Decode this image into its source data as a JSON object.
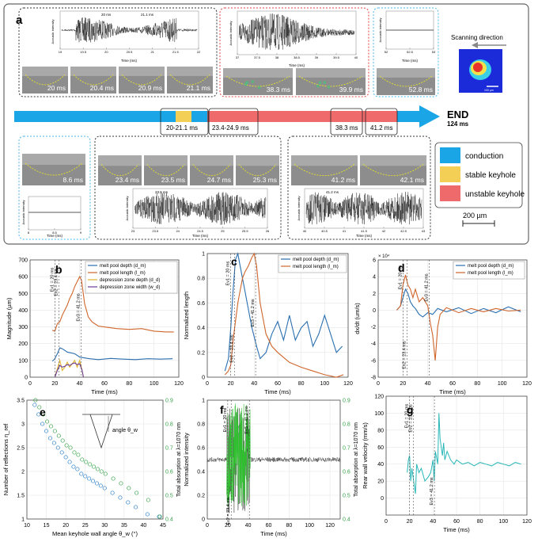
{
  "panel_a": {
    "letter": "a",
    "scan_label": "Scanning direction",
    "scale_bar_small": "100 µm",
    "scale_bar": "200 µm",
    "end_label": "END",
    "end_time": "124 ms",
    "timeline_labels": [
      "20-21.1 ms",
      "23.4-24.9 ms",
      "38.3 ms",
      "41.2 ms"
    ],
    "legend": [
      {
        "label": "conduction",
        "color": "#1aa6e6"
      },
      {
        "label": "stable keyhole",
        "color": "#f3cf55"
      },
      {
        "label": "unstable keyhole",
        "color": "#ef6b6b"
      }
    ],
    "frames_top_left": [
      "20 ms",
      "20.4 ms",
      "20.9 ms",
      "21.1 ms"
    ],
    "frames_top_mid": [
      "38.3 ms",
      "39.9 ms"
    ],
    "frames_top_right": [
      "52.8 ms"
    ],
    "frames_bottom_left": [
      "8.6 ms"
    ],
    "frames_bottom_mid": [
      "23.4 ms",
      "23.5 ms",
      "24.7 ms",
      "25.3 ms"
    ],
    "frames_bottom_right": [
      "41.2 ms",
      "42.1 ms"
    ],
    "acoustic_axis_label": "Acoustic intensity",
    "time_axis_label": "Time (ms)",
    "ac1": {
      "ticks": [
        "19",
        "19.5",
        "20",
        "20.5",
        "21",
        "21.5",
        "22"
      ],
      "marks": [
        "20 ms",
        "21.1 ms"
      ]
    },
    "ac2": {
      "ticks": [
        "37",
        "37.5",
        "38",
        "38.5",
        "39",
        "39.5",
        "40"
      ]
    },
    "ac3": {
      "ticks": [
        "52",
        "52.5",
        "53"
      ]
    },
    "ac4": {
      "ticks": [
        "8",
        "8.5",
        "9"
      ]
    },
    "ac5": {
      "ticks": [
        "23",
        "23.5",
        "24",
        "24.5",
        "25",
        "25.5",
        "26"
      ],
      "marks": [
        "23.5 ms"
      ]
    },
    "ac6": {
      "ticks": [
        "40",
        "40.5",
        "41",
        "41.5",
        "42",
        "42.5",
        "43"
      ],
      "marks": [
        "41.2 ms"
      ]
    }
  },
  "chart_data": [
    {
      "panel": "b",
      "type": "line",
      "xlabel": "Time (ms)",
      "ylabel": "Magnitude (µm)",
      "xlim": [
        0,
        120
      ],
      "ylim": [
        0,
        700
      ],
      "xticks": [
        "0",
        "20",
        "40",
        "60",
        "80",
        "100",
        "120"
      ],
      "yticks": [
        "0",
        "100",
        "200",
        "300",
        "400",
        "500",
        "600",
        "700"
      ],
      "events": [
        "Ev1 = 20 ms",
        "Ev2 = 23.4 ms",
        "Ev3 = 41.2 ms"
      ],
      "series": [
        {
          "name": "melt pool depth (d_m)",
          "color": "#2a6fb0",
          "x": [
            18,
            20,
            22,
            24,
            26,
            28,
            30,
            33,
            36,
            40,
            44,
            48,
            55,
            65,
            75,
            85,
            95,
            105,
            115
          ],
          "y": [
            95,
            110,
            140,
            175,
            170,
            160,
            150,
            145,
            140,
            120,
            115,
            110,
            105,
            112,
            108,
            105,
            110,
            108,
            110
          ]
        },
        {
          "name": "melt pool length (l_m)",
          "color": "#d0652b",
          "x": [
            18,
            20,
            22,
            24,
            26,
            28,
            30,
            32,
            34,
            36,
            38,
            40,
            41.5,
            44,
            47,
            50,
            55,
            60,
            70,
            80,
            90,
            100,
            110,
            116
          ],
          "y": [
            280,
            275,
            320,
            330,
            370,
            400,
            430,
            470,
            500,
            540,
            570,
            600,
            580,
            440,
            360,
            330,
            305,
            300,
            290,
            285,
            290,
            275,
            270,
            270
          ]
        },
        {
          "name": "depression zone depth (d_d)",
          "color": "#e0b32b",
          "x": [
            20,
            22,
            24,
            26,
            28,
            30,
            32,
            34,
            36,
            38,
            40,
            42,
            43
          ],
          "y": [
            0,
            50,
            100,
            40,
            60,
            90,
            60,
            80,
            100,
            60,
            100,
            40,
            0
          ]
        },
        {
          "name": "depression zone width (w_d)",
          "color": "#6a3c9a",
          "x": [
            20,
            22,
            24,
            26,
            28,
            30,
            32,
            34,
            36,
            38,
            40,
            42,
            43
          ],
          "y": [
            0,
            40,
            70,
            60,
            65,
            75,
            70,
            80,
            85,
            75,
            80,
            40,
            0
          ]
        }
      ]
    },
    {
      "panel": "c",
      "type": "line",
      "xlabel": "Time (ms)",
      "ylabel": "Normalized length",
      "xlim": [
        0,
        120
      ],
      "ylim": [
        0,
        1
      ],
      "xticks": [
        "0",
        "20",
        "40",
        "60",
        "80",
        "100",
        "120"
      ],
      "yticks": [
        "0",
        "0.2",
        "0.4",
        "0.6",
        "0.8",
        "1"
      ],
      "events": [
        "Ev1 = 20 ms",
        "Ev2 = 23.4 ms",
        "Ev3 = 41.2 ms"
      ],
      "series": [
        {
          "name": "melt pool depth (d_m)",
          "color": "#2a6fb0",
          "x": [
            15,
            18,
            20,
            22,
            24,
            26,
            28,
            30,
            32,
            35,
            38,
            42,
            45,
            50,
            55,
            60,
            65,
            70,
            75,
            80,
            85,
            90,
            95,
            100,
            105,
            110,
            115
          ],
          "y": [
            0.05,
            0.15,
            0.4,
            0.7,
            0.95,
            1.0,
            0.9,
            0.8,
            0.7,
            0.55,
            0.4,
            0.25,
            0.15,
            0.2,
            0.35,
            0.45,
            0.3,
            0.5,
            0.3,
            0.4,
            0.45,
            0.25,
            0.35,
            0.5,
            0.35,
            0.2,
            0.25
          ]
        },
        {
          "name": "melt pool length (l_m)",
          "color": "#d0652b",
          "x": [
            15,
            18,
            20,
            22,
            24,
            26,
            28,
            30,
            32,
            35,
            38,
            40,
            42,
            45,
            48,
            50,
            55,
            60,
            70,
            80,
            90,
            100,
            110,
            116
          ],
          "y": [
            0.02,
            0.05,
            0.1,
            0.3,
            0.45,
            0.6,
            0.7,
            0.8,
            0.85,
            0.9,
            0.97,
            1.0,
            0.9,
            0.6,
            0.45,
            0.35,
            0.25,
            0.2,
            0.12,
            0.08,
            0.05,
            0.02,
            0.0,
            0.02
          ]
        }
      ]
    },
    {
      "panel": "d",
      "type": "line",
      "xlabel": "Time (ms)",
      "ylabel": "dx/dt (um/s)",
      "axis_multiplier": "× 10⁴",
      "xlim": [
        0,
        120
      ],
      "ylim": [
        -8,
        6
      ],
      "xticks": [
        "0",
        "20",
        "40",
        "60",
        "80",
        "100",
        "120"
      ],
      "yticks": [
        "-8",
        "-6",
        "-4",
        "-2",
        "0",
        "2",
        "4",
        "6"
      ],
      "events": [
        "Ev1 = 20 ms",
        "Ev2 = 23.4 ms",
        "Ev3 = 41.2 ms"
      ],
      "series": [
        {
          "name": "melt pool depth (d_m)",
          "color": "#2a6fb0",
          "x": [
            15,
            18,
            20,
            22,
            24,
            26,
            28,
            30,
            33,
            36,
            40,
            44,
            48,
            55,
            65,
            75,
            85,
            95,
            105,
            115
          ],
          "y": [
            0,
            0.5,
            1.5,
            2.5,
            2.0,
            1.0,
            0.5,
            0.2,
            -0.5,
            -0.8,
            -0.3,
            -0.5,
            0.2,
            -0.2,
            0.3,
            -0.4,
            0.2,
            -0.3,
            0.4,
            -0.2
          ]
        },
        {
          "name": "melt pool length (l_m)",
          "color": "#d0652b",
          "x": [
            15,
            18,
            20,
            22,
            24,
            26,
            28,
            30,
            33,
            36,
            40,
            42,
            44,
            46,
            48,
            50,
            55,
            65,
            75,
            85,
            95,
            105,
            115
          ],
          "y": [
            0,
            0.5,
            3.0,
            4.2,
            3.0,
            2.5,
            1.5,
            2.5,
            1.0,
            1.5,
            0.5,
            -1.5,
            -3.0,
            -6.0,
            -2.0,
            -0.5,
            0.3,
            -0.3,
            0.2,
            -0.2,
            0.2,
            -0.1,
            0.0
          ]
        }
      ]
    },
    {
      "panel": "e",
      "type": "scatter",
      "xlabel": "Mean keyhole wall angle θ_w (°)",
      "ylabel": "Number of reflections η_ref",
      "y2label": "Total absorption at λ=1070 nm",
      "inset_label": "angle θ_w",
      "xlim": [
        10,
        45
      ],
      "ylim": [
        1,
        3.5
      ],
      "y2lim": [
        0.4,
        0.9
      ],
      "xticks": [
        "10",
        "15",
        "20",
        "25",
        "30",
        "35",
        "40",
        "45"
      ],
      "yticks": [
        "1",
        "1.5",
        "2",
        "2.5",
        "3",
        "3.5"
      ],
      "y2ticks": [
        "0.4",
        "0.5",
        "0.6",
        "0.7",
        "0.8",
        "0.9"
      ],
      "series": [
        {
          "name": "reflections",
          "color": "#2a7fc9",
          "axis": "left",
          "x": [
            12,
            13,
            14,
            15,
            16,
            17,
            18,
            19,
            20,
            21,
            22,
            23,
            24,
            25,
            26,
            27,
            28,
            29,
            30,
            32,
            34,
            36,
            38,
            41,
            44
          ],
          "y": [
            3.4,
            3.2,
            3.0,
            2.85,
            2.7,
            2.6,
            2.5,
            2.4,
            2.3,
            2.2,
            2.1,
            2.05,
            1.95,
            1.9,
            1.85,
            1.8,
            1.75,
            1.7,
            1.65,
            1.55,
            1.45,
            1.35,
            1.25,
            1.1,
            1.05
          ]
        },
        {
          "name": "absorption",
          "color": "#3aa34a",
          "axis": "right",
          "x": [
            12,
            13,
            14,
            15,
            16,
            17,
            18,
            19,
            20,
            21,
            22,
            23,
            24,
            25,
            26,
            27,
            28,
            29,
            30,
            32,
            34,
            36,
            38,
            41,
            44
          ],
          "y": [
            0.9,
            0.87,
            0.84,
            0.81,
            0.79,
            0.77,
            0.75,
            0.73,
            0.71,
            0.7,
            0.68,
            0.67,
            0.65,
            0.64,
            0.63,
            0.62,
            0.61,
            0.6,
            0.59,
            0.57,
            0.55,
            0.53,
            0.51,
            0.48,
            0.41
          ]
        }
      ]
    },
    {
      "panel": "f",
      "type": "line",
      "xlabel": "Time (ms)",
      "ylabel": "Normalized intensity",
      "y2label": "Total absorption at λ=1070 nm",
      "xlim": [
        0,
        130
      ],
      "ylim": [
        0,
        1
      ],
      "y2lim": [
        0.4,
        0.9
      ],
      "xticks": [
        "0",
        "20",
        "40",
        "60",
        "80",
        "100",
        "120"
      ],
      "yticks": [
        "0",
        "0.2",
        "0.4",
        "0.6",
        "0.8",
        "1"
      ],
      "y2ticks": [
        "0.4",
        "0.5",
        "0.6",
        "0.7",
        "0.8",
        "0.9"
      ],
      "events": [
        "Ev1 = 20 ms",
        "Ev2 = 23.4 ms",
        "Ev3 = 41.2 ms"
      ],
      "baseline": 0.5
    },
    {
      "panel": "g",
      "type": "line",
      "xlabel": "Time (ms)",
      "ylabel": "Rear wall velocity (mm/s)",
      "xlim": [
        0,
        120
      ],
      "ylim": [
        -20,
        120
      ],
      "xticks": [
        "0",
        "20",
        "40",
        "60",
        "80",
        "100",
        "120"
      ],
      "yticks": [
        "0",
        "20",
        "40",
        "60",
        "80",
        "100",
        "120"
      ],
      "events": [
        "Ev1 = 20 ms",
        "Ev2 = 23.4 ms",
        "Ev3 = 41.2 ms"
      ],
      "series": [
        {
          "name": "rear wall velocity",
          "color": "#29b7b7",
          "x": [
            18,
            19,
            20,
            21,
            22,
            23,
            24,
            25,
            26,
            28,
            30,
            33,
            36,
            38,
            40,
            41,
            42,
            44,
            45,
            46,
            47,
            48,
            49,
            50,
            52,
            55,
            58,
            60,
            65,
            70,
            75,
            80,
            85,
            90,
            95,
            100,
            105,
            110,
            115
          ],
          "y": [
            30,
            45,
            50,
            20,
            35,
            25,
            15,
            5,
            40,
            30,
            35,
            20,
            25,
            30,
            45,
            20,
            55,
            40,
            100,
            70,
            60,
            50,
            65,
            45,
            55,
            45,
            40,
            45,
            40,
            42,
            38,
            42,
            40,
            38,
            42,
            40,
            38,
            42,
            40
          ]
        }
      ]
    }
  ]
}
